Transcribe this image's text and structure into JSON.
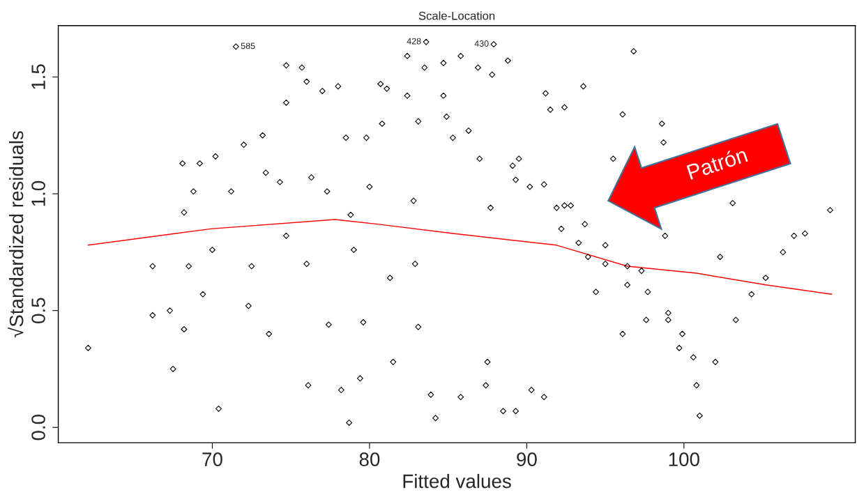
{
  "chart_data": {
    "type": "scatter",
    "title": "Scale-Location",
    "xlabel": "Fitted values",
    "ylabel": "√Standardized residuals",
    "xlim": [
      60.2,
      110.9
    ],
    "ylim": [
      -0.066,
      1.72
    ],
    "xticks": [
      70,
      80,
      90,
      100
    ],
    "yticks": [
      {
        "value": 0.0,
        "label": "0.0"
      },
      {
        "value": 0.5,
        "label": "0.5"
      },
      {
        "value": 1.0,
        "label": "1.0"
      },
      {
        "value": 1.5,
        "label": "1.5"
      }
    ],
    "grid": false,
    "series": [
      {
        "marker": "diamond",
        "color": "#000000",
        "x": [
          62.1,
          66.2,
          66.2,
          67.5,
          67.3,
          68.1,
          68.2,
          68.8,
          68.5,
          68.2,
          69.2,
          69.4,
          70.2,
          70.0,
          70.4,
          71.5,
          72.0,
          71.2,
          72.3,
          72.5,
          73.2,
          73.4,
          73.6,
          74.7,
          74.7,
          74.3,
          74.7,
          75.7,
          76.0,
          76.3,
          76.0,
          76.1,
          77.0,
          77.3,
          77.4,
          78.0,
          78.2,
          78.7,
          78.5,
          78.8,
          79.0,
          79.4,
          79.6,
          79.8,
          80.0,
          80.7,
          81.1,
          80.8,
          81.3,
          81.5,
          82.4,
          82.4,
          83.6,
          83.5,
          83.1,
          82.8,
          82.9,
          83.1,
          83.9,
          84.2,
          84.7,
          84.7,
          84.9,
          85.3,
          85.8,
          85.8,
          86.3,
          86.9,
          87.0,
          87.4,
          87.9,
          87.8,
          87.7,
          87.5,
          88.8,
          88.5,
          89.3,
          89.1,
          89.3,
          90.2,
          90.3,
          91.1,
          91.2,
          91.5,
          91.9,
          92.4,
          92.2,
          92.8,
          93.3,
          93.6,
          93.9,
          94.4,
          95.0,
          95.5,
          96.1,
          96.1,
          96.8,
          96.4,
          97.3,
          97.6,
          98.6,
          98.7,
          98.8,
          99.0,
          99.7,
          100.6,
          100.8,
          101.0,
          102.0,
          102.3,
          103.1,
          103.3,
          104.3,
          105.2,
          106.3,
          107.0,
          107.7,
          109.3,
          89.5,
          91.1,
          92.4,
          93.7,
          95.0,
          96.4,
          97.7,
          99.0,
          99.9
        ],
        "values": [
          0.34,
          0.69,
          0.48,
          0.25,
          0.5,
          1.13,
          0.92,
          1.01,
          0.69,
          0.42,
          1.13,
          0.57,
          1.16,
          0.76,
          0.08,
          1.63,
          1.21,
          1.01,
          0.52,
          0.69,
          1.25,
          1.09,
          0.4,
          1.55,
          1.39,
          1.05,
          0.82,
          1.54,
          1.48,
          1.07,
          0.7,
          0.18,
          1.44,
          1.01,
          0.44,
          1.46,
          0.16,
          0.02,
          1.24,
          0.91,
          0.76,
          0.21,
          0.45,
          1.24,
          1.03,
          1.47,
          1.45,
          1.3,
          0.64,
          0.28,
          1.59,
          1.42,
          1.65,
          1.54,
          1.31,
          0.97,
          0.7,
          0.43,
          0.14,
          0.04,
          1.56,
          1.42,
          1.33,
          1.24,
          1.59,
          0.13,
          1.27,
          1.54,
          1.15,
          0.18,
          1.64,
          1.51,
          0.94,
          0.28,
          1.57,
          0.07,
          0.07,
          1.12,
          1.06,
          1.03,
          0.16,
          0.13,
          1.43,
          1.36,
          0.94,
          1.37,
          0.85,
          0.95,
          0.79,
          1.46,
          0.73,
          0.58,
          0.7,
          1.15,
          1.34,
          0.4,
          1.61,
          0.61,
          0.67,
          0.46,
          1.3,
          1.22,
          0.82,
          0.46,
          0.34,
          0.3,
          0.18,
          0.05,
          0.28,
          0.73,
          0.96,
          0.46,
          0.57,
          0.64,
          0.75,
          0.82,
          0.83,
          0.93,
          1.15,
          1.04,
          0.95,
          0.87,
          0.78,
          0.69,
          0.58,
          0.49,
          0.4
        ]
      },
      {
        "type": "line",
        "color": "#ff0000",
        "x": [
          62.1,
          69.9,
          77.8,
          80.5,
          85.3,
          91.9,
          96.4,
          100.8,
          105.2,
          109.4
        ],
        "values": [
          0.78,
          0.85,
          0.89,
          0.87,
          0.83,
          0.78,
          0.69,
          0.66,
          0.61,
          0.57
        ]
      }
    ],
    "annotations": [
      {
        "text": "585",
        "x": 71.5,
        "y": 1.63
      },
      {
        "text": "428",
        "x": 83.6,
        "y": 1.65
      },
      {
        "text": "430",
        "x": 87.9,
        "y": 1.64
      },
      "Patrón"
    ]
  }
}
